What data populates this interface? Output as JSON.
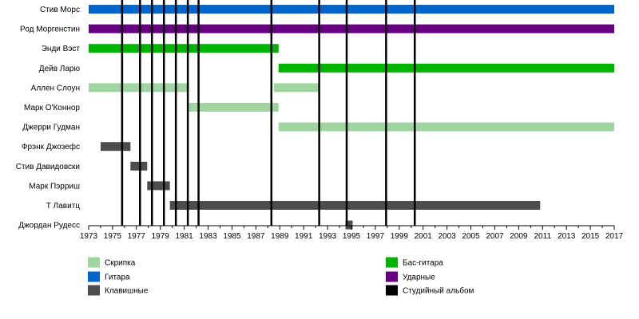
{
  "chart_data": {
    "type": "timeline",
    "title": "",
    "x_range": [
      1973,
      2017
    ],
    "x_ticks": [
      "1973",
      "1975",
      "1977",
      "1979",
      "1981",
      "1983",
      "1985",
      "1987",
      "1989",
      "1991",
      "1993",
      "1995",
      "1997",
      "1999",
      "2001",
      "2003",
      "2005",
      "2007",
      "2009",
      "2011",
      "2013",
      "2015",
      "2017"
    ],
    "members": [
      {
        "name": "Стив Морс",
        "spans": [
          {
            "role": "guitar",
            "start": 1973,
            "end": 2017
          }
        ]
      },
      {
        "name": "Род Моргенстин",
        "spans": [
          {
            "role": "drums",
            "start": 1973,
            "end": 2017
          }
        ]
      },
      {
        "name": "Энди Вэст",
        "spans": [
          {
            "role": "bass",
            "start": 1973,
            "end": 1988.9
          }
        ]
      },
      {
        "name": "Дейв Ларю",
        "spans": [
          {
            "role": "bass",
            "start": 1988.9,
            "end": 2017
          }
        ]
      },
      {
        "name": "Аллен Слоун",
        "spans": [
          {
            "role": "violin",
            "start": 1973,
            "end": 1981.4
          },
          {
            "role": "violin",
            "start": 1988.5,
            "end": 1992.3
          }
        ]
      },
      {
        "name": "Марк О'Коннор",
        "spans": [
          {
            "role": "violin",
            "start": 1981.4,
            "end": 1988.9
          }
        ]
      },
      {
        "name": "Джерри Гудман",
        "spans": [
          {
            "role": "violin",
            "start": 1988.9,
            "end": 2017
          }
        ]
      },
      {
        "name": "Фрэнк Джозефс",
        "spans": [
          {
            "role": "keys",
            "start": 1974,
            "end": 1976.5
          }
        ]
      },
      {
        "name": "Стив Давидовски",
        "spans": [
          {
            "role": "keys",
            "start": 1976.5,
            "end": 1977.9
          }
        ]
      },
      {
        "name": "Марк Пэрриш",
        "spans": [
          {
            "role": "keys",
            "start": 1977.9,
            "end": 1979.8
          }
        ]
      },
      {
        "name": "Т Лавитц",
        "spans": [
          {
            "role": "keys",
            "start": 1979.8,
            "end": 2010.8
          }
        ]
      },
      {
        "name": "Джордан Рудесс",
        "spans": [
          {
            "role": "keys",
            "start": 1994.5,
            "end": 1995.1
          }
        ]
      }
    ],
    "album_years": [
      1975.8,
      1977.3,
      1978.3,
      1979.3,
      1980.3,
      1981.3,
      1982.2,
      1988.3,
      1992.3,
      1994.6,
      1997.9,
      2000.3
    ],
    "legend": [
      {
        "key": "violin",
        "label": "Скрипка",
        "column": "left"
      },
      {
        "key": "guitar",
        "label": "Гитара",
        "column": "left"
      },
      {
        "key": "keys",
        "label": "Клавишные",
        "column": "left"
      },
      {
        "key": "bass",
        "label": "Бас-гитара",
        "column": "right"
      },
      {
        "key": "drums",
        "label": "Ударные",
        "column": "right"
      },
      {
        "key": "album",
        "label": "Студийный альбом",
        "column": "right"
      }
    ],
    "colors": {
      "guitar": "#0066cc",
      "drums": "#660080",
      "bass": "#00b300",
      "violin": "#a0d4a0",
      "keys": "#4d4d4d",
      "album": "#000000",
      "axis": "#000000"
    }
  }
}
